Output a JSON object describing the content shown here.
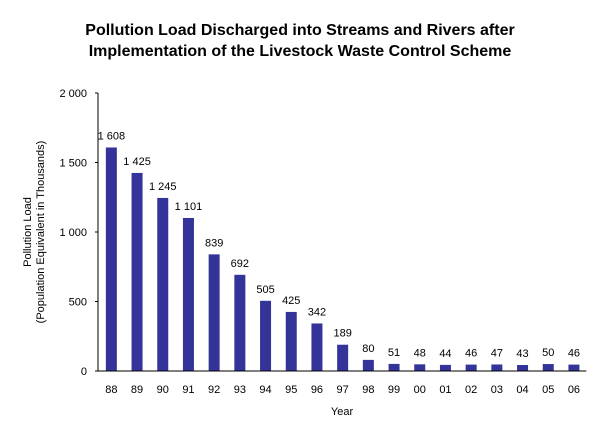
{
  "chart_data": {
    "type": "bar",
    "title_line1": "Pollution Load Discharged into Streams and Rivers after",
    "title_line2": "Implementation of the Livestock Waste Control Scheme",
    "xlabel": "Year",
    "ylabel_line1": "Pollution Load",
    "ylabel_line2": "(Population Equivalent in Thousands)",
    "categories": [
      "88",
      "89",
      "90",
      "91",
      "92",
      "93",
      "94",
      "95",
      "96",
      "97",
      "98",
      "99",
      "00",
      "01",
      "02",
      "03",
      "04",
      "05",
      "06"
    ],
    "values": [
      1608,
      1425,
      1245,
      1101,
      839,
      692,
      505,
      425,
      342,
      189,
      80,
      51,
      48,
      44,
      46,
      47,
      43,
      50,
      46
    ],
    "data_labels": [
      "1 608",
      "1 425",
      "1 245",
      "1 101",
      "839",
      "692",
      "505",
      "425",
      "342",
      "189",
      "80",
      "51",
      "48",
      "44",
      "46",
      "47",
      "43",
      "50",
      "46"
    ],
    "ylim": [
      0,
      2000
    ],
    "yticks": [
      0,
      500,
      1000,
      1500,
      2000
    ],
    "ytick_labels": [
      "0",
      "500",
      "1 000",
      "1 500",
      "2 000"
    ],
    "grid": false,
    "bar_color": "#333399"
  }
}
